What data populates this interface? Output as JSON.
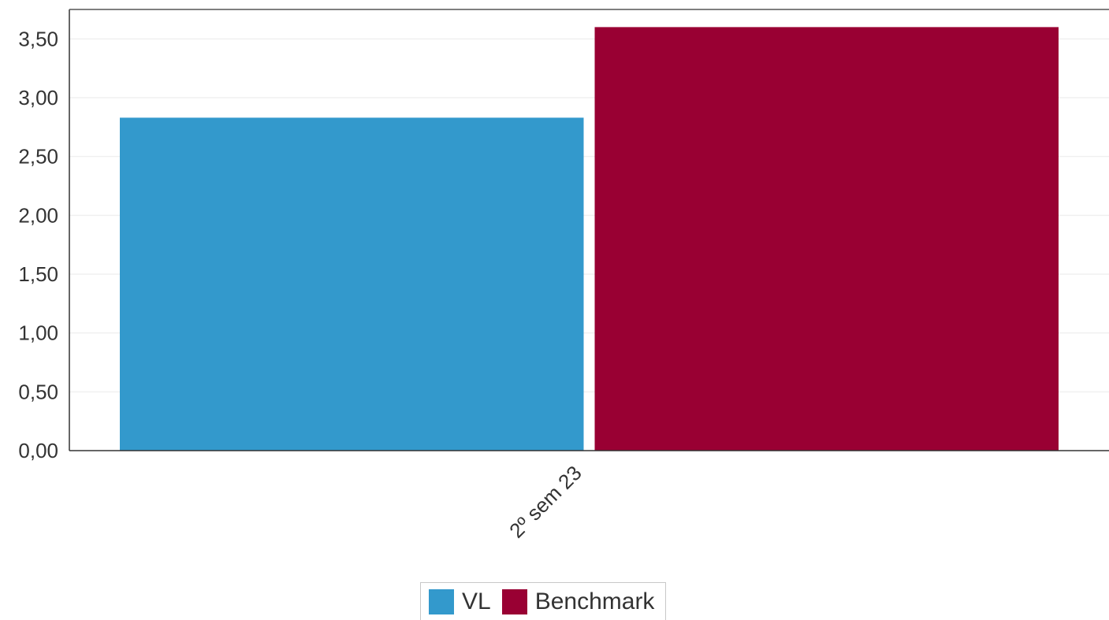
{
  "chart_data": {
    "type": "bar",
    "categories": [
      "2º sem 23"
    ],
    "series": [
      {
        "name": "VL",
        "values": [
          2.83
        ],
        "color": "#3399cc"
      },
      {
        "name": "Benchmark",
        "values": [
          3.6
        ],
        "color": "#990033"
      }
    ],
    "ylim": [
      0,
      3.75
    ],
    "yticks": [
      "0,00",
      "0,50",
      "1,00",
      "1,50",
      "2,00",
      "2,50",
      "3,00",
      "3,50"
    ],
    "ytick_values": [
      0,
      0.5,
      1,
      1.5,
      2,
      2.5,
      3,
      3.5
    ],
    "grid": true,
    "legend_position": "bottom-center"
  }
}
